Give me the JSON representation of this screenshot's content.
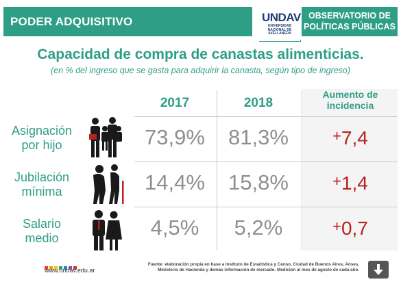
{
  "header": {
    "left_label": "PODER ADQUISITIVO",
    "logo_word": "UNDAV",
    "logo_sub": "UNIVERSIDAD NACIONAL DE AVELLANEDA",
    "right_label_1": "OBSERVATORIO DE",
    "right_label_2": "POLÍTICAS PÚBLICAS"
  },
  "chart_data": {
    "type": "table",
    "title": "Capacidad de compra de canastas alimenticias.",
    "subtitle": "(en % del ingreso que se gasta para adquirir la canasta, según tipo de ingreso)",
    "columns": [
      "2017",
      "2018",
      "Aumento de incidencia"
    ],
    "rows": [
      {
        "label_1": "Asignación",
        "label_2": "por hijo",
        "v2017": "73,9%",
        "v2018": "81,3%",
        "sign": "+",
        "inc": "7,4"
      },
      {
        "label_1": "Jubilación",
        "label_2": "mínima",
        "v2017": "14,4%",
        "v2018": "15,8%",
        "sign": "+",
        "inc": "1,4"
      },
      {
        "label_1": "Salario",
        "label_2": "medio",
        "v2017": "4,5%",
        "v2018": "5,2%",
        "sign": "+",
        "inc": "0,7"
      }
    ],
    "col_head_inc_1": "Aumento de",
    "col_head_inc_2": "incidencia"
  },
  "footer": {
    "url": "www.undav.edu.ar",
    "source_1": "Fuente: elaboración propia en base a Instituto de Estadística y Censo, Ciudad de Buenos Aires, Anses,",
    "source_2": "Ministerio de Hacienda y demás información de mercado. Medición al mes de agosto de cada año."
  },
  "colors": {
    "accent": "#2e9e86",
    "increase": "#b5231f",
    "values": "#8f8f8f"
  },
  "icons": [
    "family-icon",
    "elderly-couple-icon",
    "workers-couple-icon",
    "download-icon"
  ]
}
